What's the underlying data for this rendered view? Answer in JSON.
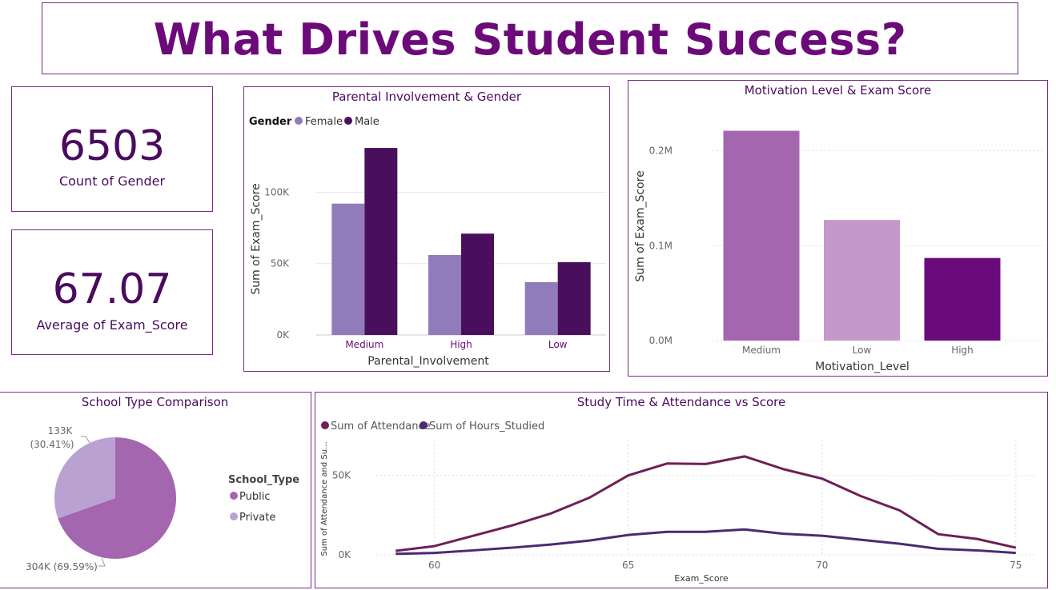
{
  "header": {
    "title": "What Drives Student Success?"
  },
  "kpis": [
    {
      "value": "6503",
      "label": "Count of Gender"
    },
    {
      "value": "67.07",
      "label": "Average of Exam_Score"
    }
  ],
  "colors": {
    "border": "#7a2a8a",
    "female": "#917bbb",
    "male": "#4a0f5c",
    "motivation": [
      "#a566b0",
      "#c498c9",
      "#6b0a7a"
    ],
    "public": "#a566b0",
    "private": "#b9a2d2",
    "attendance": "#6e1f57",
    "hours": "#4a2a72"
  },
  "chart_data": [
    {
      "type": "bar",
      "title": "Parental Involvement & Gender",
      "legend_title": "Gender",
      "categories": [
        "Medium",
        "High",
        "Low"
      ],
      "series": [
        {
          "name": "Female",
          "values": [
            92000,
            56000,
            37000
          ]
        },
        {
          "name": "Male",
          "values": [
            131000,
            71000,
            51000
          ]
        }
      ],
      "xlabel": "Parental_Involvement",
      "ylabel": "Sum of Exam_Score",
      "yticks": [
        "0K",
        "50K",
        "100K"
      ],
      "ylim": [
        0,
        140000
      ]
    },
    {
      "type": "bar",
      "title": "Motivation Level & Exam Score",
      "categories": [
        "Medium",
        "Low",
        "High"
      ],
      "values": [
        221000,
        127000,
        87000
      ],
      "xlabel": "Motivation_Level",
      "ylabel": "Sum of Exam_Score",
      "yticks": [
        "0.0M",
        "0.1M",
        "0.2M"
      ],
      "ylim": [
        0,
        240000
      ]
    },
    {
      "type": "pie",
      "title": "School Type Comparison",
      "legend_title": "School_Type",
      "slices": [
        {
          "name": "Public",
          "value": 304,
          "label": "304K (69.59%)"
        },
        {
          "name": "Private",
          "value": 133,
          "label_value": "133K",
          "label_pct": "(30.41%)"
        }
      ]
    },
    {
      "type": "line",
      "title": "Study Time & Attendance vs Score",
      "x": [
        59,
        60,
        61,
        62,
        63,
        64,
        65,
        66,
        67,
        68,
        69,
        70,
        71,
        72,
        73,
        74,
        75
      ],
      "series": [
        {
          "name": "Sum of Attendance",
          "values": [
            2500,
            5500,
            12000,
            18500,
            26000,
            36000,
            50000,
            57500,
            57200,
            62000,
            54000,
            48000,
            37000,
            28000,
            13000,
            10000,
            4500
          ]
        },
        {
          "name": "Sum of Hours_Studied",
          "values": [
            600,
            1200,
            2800,
            4500,
            6500,
            9000,
            12500,
            14500,
            14500,
            16000,
            13300,
            12000,
            9500,
            7000,
            3800,
            2800,
            1200
          ]
        }
      ],
      "xlabel": "Exam_Score",
      "ylabel": "Sum of Attendance and Su...",
      "xticks": [
        "60",
        "65",
        "70",
        "75"
      ],
      "yticks": [
        "0K",
        "50K"
      ],
      "xlim": [
        58.5,
        75.5
      ],
      "ylim": [
        0,
        72000
      ]
    }
  ]
}
